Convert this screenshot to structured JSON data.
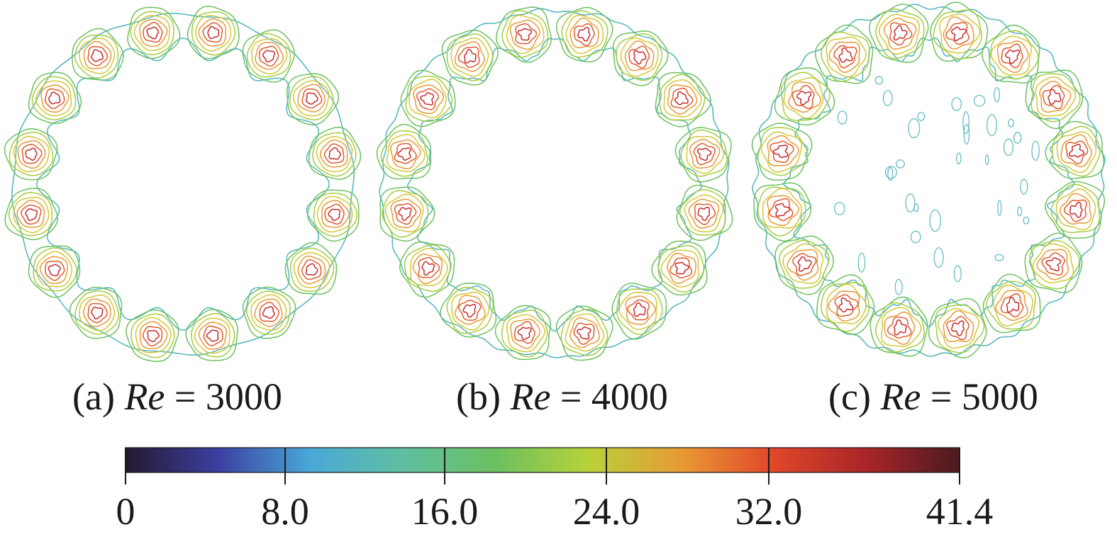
{
  "panels": [
    {
      "letter": "(a)",
      "variable": "Re",
      "equals": "=",
      "value": "3000",
      "vortex_count": 16
    },
    {
      "letter": "(b)",
      "variable": "Re",
      "equals": "=",
      "value": "4000",
      "vortex_count": 16
    },
    {
      "letter": "(c)",
      "variable": "Re",
      "equals": "=",
      "value": "5000",
      "vortex_count": 16
    }
  ],
  "colorbar": {
    "min": 0,
    "max": 41.4,
    "ticks": [
      {
        "value": 0,
        "label": "0"
      },
      {
        "value": 8.0,
        "label": "8.0"
      },
      {
        "value": 16.0,
        "label": "16.0"
      },
      {
        "value": 24.0,
        "label": "24.0"
      },
      {
        "value": 32.0,
        "label": "32.0"
      },
      {
        "value": 41.4,
        "label": "41.4"
      }
    ],
    "colormap": [
      "#231a2e",
      "#3b3fa0",
      "#4aa8d8",
      "#5fbfa0",
      "#6cc060",
      "#b8d23a",
      "#e89a35",
      "#e0462a",
      "#a82528",
      "#4a1a20"
    ]
  },
  "contour_colors": {
    "outer": "#5ab8c0",
    "level2": "#6cc060",
    "level3": "#a4cc3c",
    "level4": "#d4c834",
    "level5": "#e89a35",
    "level6": "#e05a2a",
    "core": "#c8282a"
  }
}
